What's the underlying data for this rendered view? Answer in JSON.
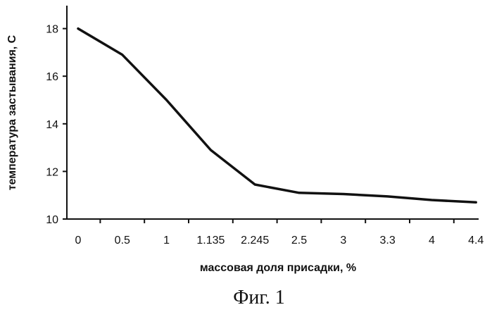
{
  "chart_data": {
    "type": "line",
    "categories": [
      "0",
      "0.5",
      "1",
      "1.135",
      "2.245",
      "2.5",
      "3",
      "3.3",
      "4",
      "4.4"
    ],
    "series": [
      {
        "values": [
          18,
          16.9,
          15,
          12.9,
          11.45,
          11.1,
          11.05,
          10.95,
          10.8,
          10.7
        ]
      }
    ],
    "y_ticks": [
      "10",
      "12",
      "14",
      "16",
      "18"
    ],
    "ylim": [
      10,
      19
    ],
    "xlabel": "массовая доля присадки, %",
    "ylabel": "температура застывания, С",
    "grid": false,
    "legend": "none"
  },
  "caption": "Фиг. 1"
}
